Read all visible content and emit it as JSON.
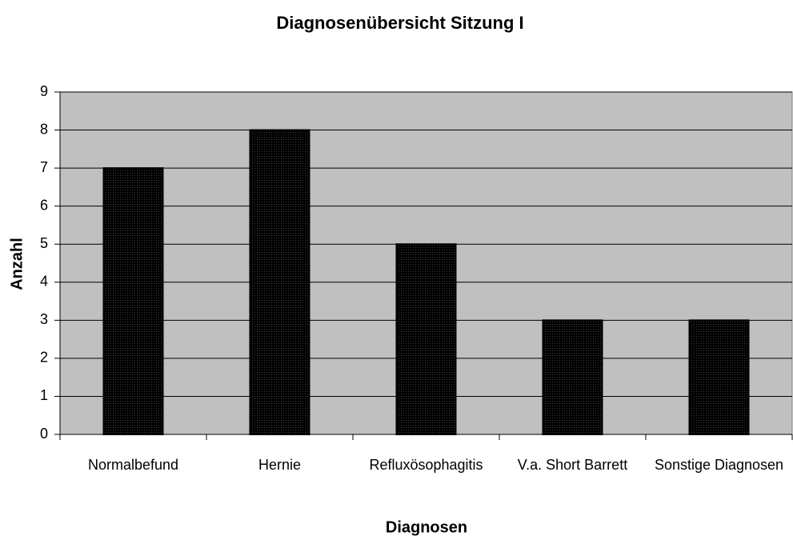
{
  "chart_data": {
    "type": "bar",
    "title": "Diagnosenübersicht Sitzung I",
    "x_label": "Diagnosen",
    "y_label": "Anzahl",
    "categories": [
      "Normalbefund",
      "Hernie",
      "Refluxösophagitis",
      "V.a. Short Barrett",
      "Sonstige Diagnosen"
    ],
    "values": [
      7,
      8,
      5,
      3,
      3
    ],
    "color": "#3f3fcc",
    "ylim": [
      0,
      9
    ],
    "yticks": [
      0,
      1,
      2,
      3,
      4,
      5,
      6,
      7,
      8,
      9
    ],
    "grid": true
  }
}
